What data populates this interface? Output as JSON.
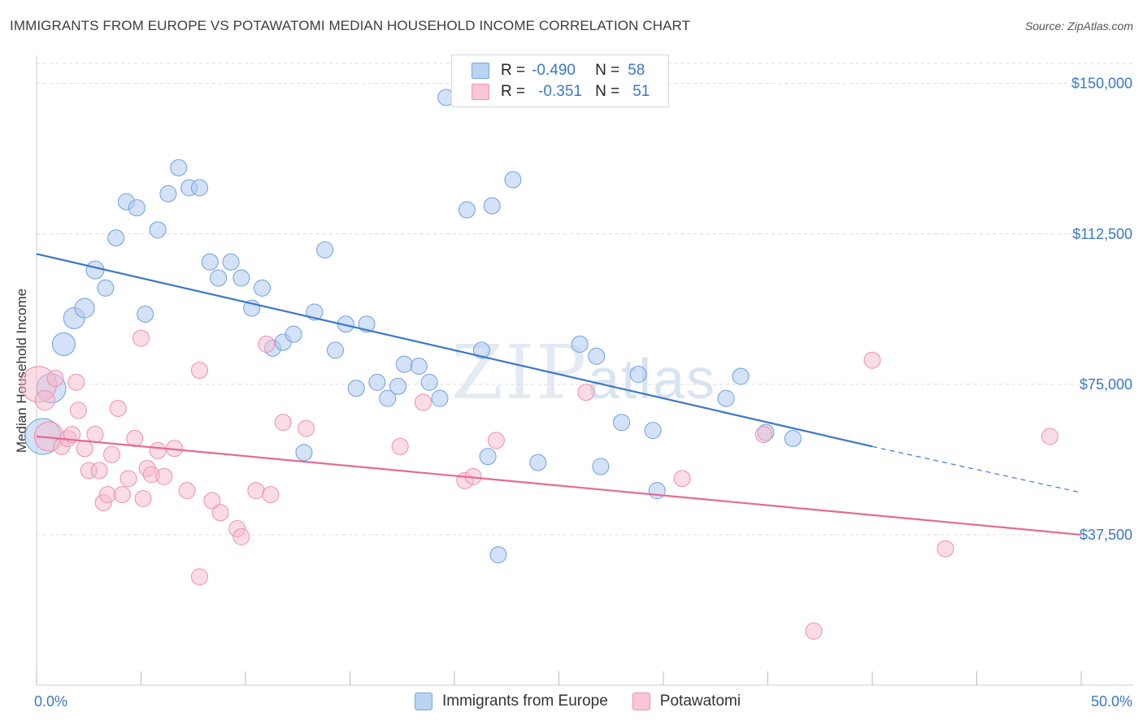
{
  "title": "IMMIGRANTS FROM EUROPE VS POTAWATOMI MEDIAN HOUSEHOLD INCOME CORRELATION CHART",
  "source": "Source: ZipAtlas.com",
  "watermark": {
    "zip": "ZIP",
    "atlas": "atlas"
  },
  "legend": {
    "rows": [
      {
        "r_label": "R =",
        "r_value": "-0.490",
        "n_label": "N =",
        "n_value": "58"
      },
      {
        "r_label": "R =",
        "r_value": "-0.351",
        "n_label": "N =",
        "n_value": "51"
      }
    ]
  },
  "bottom_legend": {
    "series1": "Immigrants from Europe",
    "series2": "Potawatomi"
  },
  "colors": {
    "blue": "#3b78c9",
    "blue_fill": "#aecbf0",
    "pink": "#e46a96",
    "pink_fill": "#f6b9cc",
    "grid": "#dcdcdc"
  },
  "chart_data": {
    "type": "scatter",
    "title": "IMMIGRANTS FROM EUROPE VS POTAWATOMI MEDIAN HOUSEHOLD INCOME CORRELATION CHART",
    "xlabel": "",
    "ylabel": "Median Household Income",
    "xlim": [
      0,
      50
    ],
    "ylim": [
      0,
      155000
    ],
    "x_tick_labels": [
      "0.0%",
      "50.0%"
    ],
    "y_ticks": [
      37500,
      75000,
      112500,
      150000
    ],
    "y_tick_labels": [
      "$37,500",
      "$75,000",
      "$112,500",
      "$150,000"
    ],
    "series": [
      {
        "name": "Immigrants from Europe",
        "trend": {
          "x0": 0,
          "y0": 107500,
          "x1": 40,
          "y1": 59500,
          "dash_to_x": 50,
          "dash_to_y": 48000
        },
        "points": [
          [
            0.3,
            62000,
            22
          ],
          [
            0.7,
            74000,
            18
          ],
          [
            1.3,
            85000,
            14
          ],
          [
            1.8,
            91500,
            13
          ],
          [
            2.3,
            94000,
            12
          ],
          [
            2.8,
            103500,
            11
          ],
          [
            3.3,
            99000,
            10
          ],
          [
            3.8,
            111500,
            10
          ],
          [
            4.3,
            120500,
            10
          ],
          [
            4.8,
            119000,
            10
          ],
          [
            5.2,
            92500,
            10
          ],
          [
            5.8,
            113500,
            10
          ],
          [
            6.3,
            122500,
            10
          ],
          [
            6.8,
            129000,
            10
          ],
          [
            7.3,
            124000,
            10
          ],
          [
            7.8,
            124000,
            10
          ],
          [
            8.3,
            105500,
            10
          ],
          [
            8.7,
            101500,
            10
          ],
          [
            9.3,
            105500,
            10
          ],
          [
            9.8,
            101500,
            10
          ],
          [
            10.3,
            94000,
            10
          ],
          [
            10.8,
            99000,
            10
          ],
          [
            11.3,
            84000,
            10
          ],
          [
            11.8,
            85500,
            10
          ],
          [
            12.3,
            87500,
            10
          ],
          [
            12.8,
            58000,
            10
          ],
          [
            13.3,
            93000,
            10
          ],
          [
            13.8,
            108500,
            10
          ],
          [
            14.3,
            83500,
            10
          ],
          [
            14.8,
            90000,
            10
          ],
          [
            15.3,
            74000,
            10
          ],
          [
            15.8,
            90000,
            10
          ],
          [
            16.3,
            75500,
            10
          ],
          [
            16.8,
            71500,
            10
          ],
          [
            17.3,
            74500,
            10
          ],
          [
            17.6,
            80000,
            10
          ],
          [
            18.3,
            79500,
            10
          ],
          [
            18.8,
            75500,
            10
          ],
          [
            19.3,
            71500,
            10
          ],
          [
            19.6,
            146500,
            10
          ],
          [
            20.6,
            118500,
            10
          ],
          [
            21.3,
            83500,
            10
          ],
          [
            21.6,
            57000,
            10
          ],
          [
            21.8,
            119500,
            10
          ],
          [
            22.1,
            32500,
            10
          ],
          [
            22.8,
            126000,
            10
          ],
          [
            24.0,
            55500,
            10
          ],
          [
            26.0,
            85000,
            10
          ],
          [
            26.8,
            82000,
            10
          ],
          [
            27.0,
            54500,
            10
          ],
          [
            28.0,
            65500,
            10
          ],
          [
            28.8,
            77500,
            10
          ],
          [
            29.5,
            63500,
            10
          ],
          [
            29.7,
            48500,
            10
          ],
          [
            33.0,
            71500,
            10
          ],
          [
            33.7,
            77000,
            10
          ],
          [
            34.9,
            63000,
            10
          ],
          [
            36.2,
            61500,
            10
          ]
        ]
      },
      {
        "name": "Potawatomi",
        "trend": {
          "x0": 0,
          "y0": 62000,
          "x1": 50,
          "y1": 37500
        },
        "points": [
          [
            0.1,
            75000,
            22
          ],
          [
            0.4,
            71000,
            12
          ],
          [
            0.6,
            62000,
            18
          ],
          [
            0.9,
            76500,
            10
          ],
          [
            1.2,
            59500,
            10
          ],
          [
            1.5,
            61500,
            10
          ],
          [
            1.7,
            62500,
            10
          ],
          [
            1.9,
            75500,
            10
          ],
          [
            2.0,
            68500,
            10
          ],
          [
            2.3,
            59000,
            10
          ],
          [
            2.5,
            53500,
            10
          ],
          [
            2.8,
            62500,
            10
          ],
          [
            3.0,
            53500,
            10
          ],
          [
            3.2,
            45500,
            10
          ],
          [
            3.4,
            47500,
            10
          ],
          [
            3.6,
            57500,
            10
          ],
          [
            3.9,
            69000,
            10
          ],
          [
            4.1,
            47500,
            10
          ],
          [
            4.4,
            51500,
            10
          ],
          [
            4.7,
            61500,
            10
          ],
          [
            5.0,
            86500,
            10
          ],
          [
            5.1,
            46500,
            10
          ],
          [
            5.3,
            54000,
            10
          ],
          [
            5.5,
            52500,
            10
          ],
          [
            5.8,
            58500,
            10
          ],
          [
            6.1,
            52000,
            10
          ],
          [
            6.6,
            59000,
            10
          ],
          [
            7.2,
            48500,
            10
          ],
          [
            7.8,
            78500,
            10
          ],
          [
            7.8,
            27000,
            10
          ],
          [
            8.4,
            46000,
            10
          ],
          [
            8.8,
            43000,
            10
          ],
          [
            9.6,
            39000,
            10
          ],
          [
            9.8,
            37000,
            10
          ],
          [
            10.5,
            48500,
            10
          ],
          [
            11.0,
            85000,
            10
          ],
          [
            11.2,
            47500,
            10
          ],
          [
            11.8,
            65500,
            10
          ],
          [
            12.9,
            64000,
            10
          ],
          [
            17.4,
            59500,
            10
          ],
          [
            18.5,
            70500,
            10
          ],
          [
            20.5,
            51000,
            10
          ],
          [
            20.9,
            52000,
            10
          ],
          [
            22.0,
            61000,
            10
          ],
          [
            26.3,
            73000,
            10
          ],
          [
            30.9,
            51500,
            10
          ],
          [
            34.8,
            62500,
            10
          ],
          [
            37.2,
            13500,
            10
          ],
          [
            40.0,
            81000,
            10
          ],
          [
            43.5,
            34000,
            10
          ],
          [
            48.5,
            62000,
            10
          ]
        ]
      }
    ]
  }
}
